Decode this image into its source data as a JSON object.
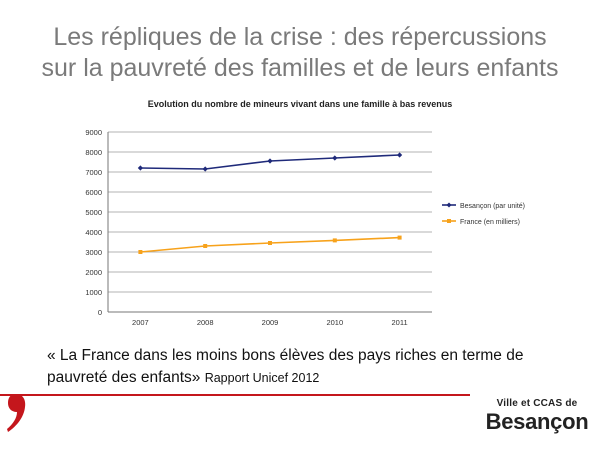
{
  "slide": {
    "title_line1": "Les répliques de la crise : des répercussions",
    "title_line2": "sur la pauvreté des familles et de leurs enfants",
    "quote_main": "« La France dans les moins bons élèves des pays riches en terme de pauvreté des enfants»",
    "quote_source": "Rapport Unicef 2012",
    "logo_top": "Ville et CCAS de",
    "logo_city": "Besançon",
    "accent_color": "#c4161c"
  },
  "chart_data": {
    "type": "line",
    "title": "Evolution du nombre de mineurs vivant dans une famille à  bas revenus",
    "xlabel": "",
    "ylabel": "",
    "categories": [
      "2007",
      "2008",
      "2009",
      "2010",
      "2011"
    ],
    "ylim": [
      0,
      9000
    ],
    "yticks": [
      0,
      1000,
      2000,
      3000,
      4000,
      5000,
      6000,
      7000,
      8000,
      9000
    ],
    "grid": true,
    "legend_position": "right",
    "series": [
      {
        "name": "Besançon (par unité)",
        "values": [
          7200,
          7150,
          7550,
          7700,
          7850
        ],
        "color": "#1f2a7a",
        "marker": "diamond"
      },
      {
        "name": "France (en milliers)",
        "values": [
          3000,
          3300,
          3450,
          3580,
          3720
        ],
        "color": "#f7a21b",
        "marker": "square"
      }
    ]
  }
}
